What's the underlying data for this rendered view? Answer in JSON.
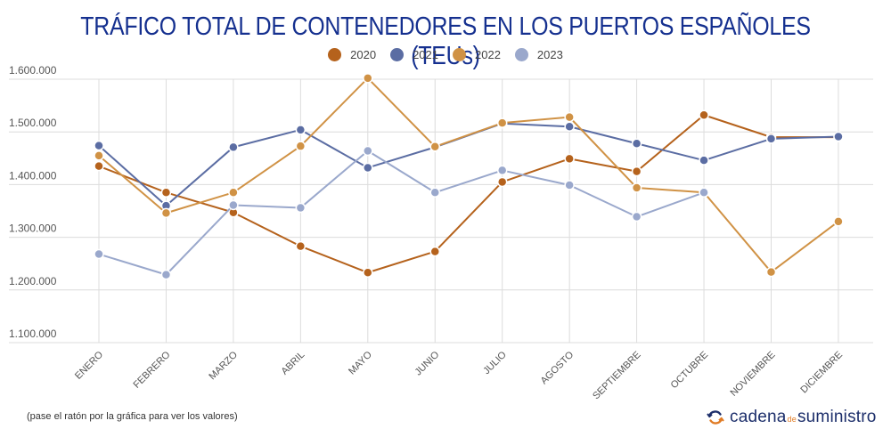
{
  "footnote": "(pase el ratón por la gráfica para ver los valores)",
  "brand": {
    "part1": "cadena",
    "part2": "de",
    "part3": "suministro",
    "icon": "refresh-arrows-icon"
  },
  "chart_data": {
    "type": "line",
    "title": "TRÁFICO TOTAL DE CONTENEDORES EN LOS PUERTOS ESPAÑOLES (TEUs)",
    "xlabel": "",
    "ylabel": "",
    "categories": [
      "ENERO",
      "FEBRERO",
      "MARZO",
      "ABRIL",
      "MAYO",
      "JUNIO",
      "JULIO",
      "AGOSTO",
      "SEPTIEMBRE",
      "OCTUBRE",
      "NOVIEMBRE",
      "DICIEMBRE"
    ],
    "ylim": [
      1100000,
      1600000
    ],
    "yticks": [
      1100000,
      1200000,
      1300000,
      1400000,
      1500000,
      1600000
    ],
    "ytick_labels": [
      "1.100.000",
      "1.200.000",
      "1.300.000",
      "1.400.000",
      "1.500.000",
      "1.600.000"
    ],
    "grid": true,
    "legend_position": "top-center",
    "series": [
      {
        "name": "2020",
        "color": "#b5621c",
        "values": [
          1435000,
          1385000,
          1347000,
          1283000,
          1233000,
          1273000,
          1405000,
          1449000,
          1425000,
          1532000,
          1490000,
          1490000
        ]
      },
      {
        "name": "2021",
        "color": "#5b6da3",
        "values": [
          1474000,
          1360000,
          1471000,
          1504000,
          1432000,
          1471000,
          1516000,
          1510000,
          1478000,
          1446000,
          1487000,
          1491000
        ]
      },
      {
        "name": "2022",
        "color": "#d09245",
        "values": [
          1455000,
          1346000,
          1385000,
          1473000,
          1602000,
          1472000,
          1517000,
          1528000,
          1394000,
          1385000,
          1234000,
          1330000
        ]
      },
      {
        "name": "2023",
        "color": "#9aa8cc",
        "values": [
          1268000,
          1229000,
          1361000,
          1356000,
          1464000,
          1385000,
          1427000,
          1399000,
          1339000,
          1385000,
          null,
          null
        ]
      }
    ]
  }
}
